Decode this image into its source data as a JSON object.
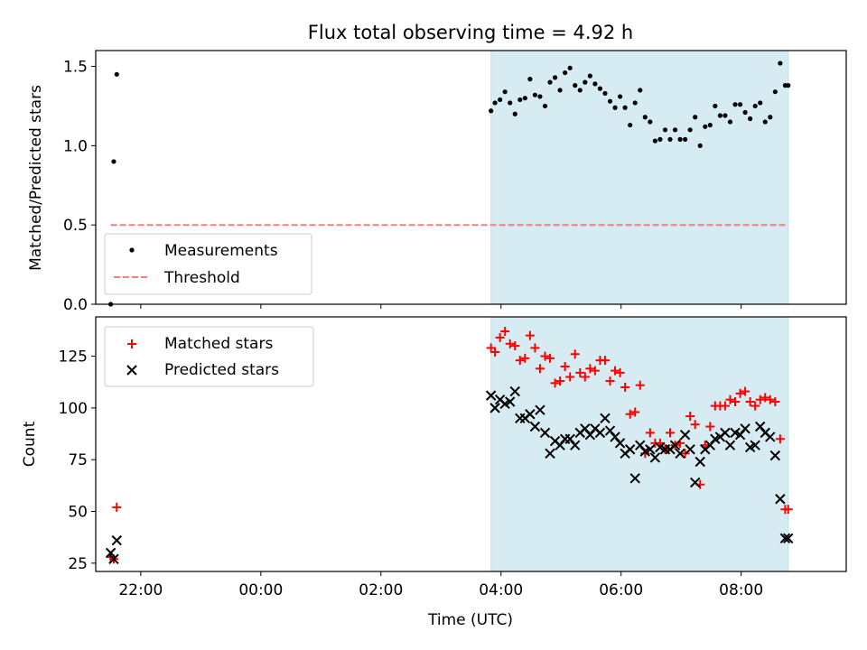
{
  "chart_data": [
    {
      "type": "scatter",
      "title": "Flux total observing time = 4.92 h",
      "xlabel": "",
      "ylabel": "Matched/Predicted stars",
      "xlim": [
        "21:15",
        "09:45"
      ],
      "ylim": [
        0,
        1.6
      ],
      "yticks": [
        0.0,
        0.5,
        1.0,
        1.5
      ],
      "ytick_labels": [
        "0.0",
        "0.5",
        "1.0",
        "1.5"
      ],
      "shaded_span": [
        "03:50",
        "08:47"
      ],
      "threshold": {
        "name": "Threshold",
        "y": 0.5,
        "x": [
          "21:30",
          "08:47"
        ],
        "color": "#f08080"
      },
      "legend": {
        "position": "lower-left",
        "entries": [
          "Measurements",
          "Threshold"
        ]
      },
      "series": [
        {
          "name": "Measurements",
          "color": "#000000",
          "x": [
            "21:30",
            "21:33",
            "21:36",
            "03:50",
            "03:54",
            "03:59",
            "04:04",
            "04:09",
            "04:14",
            "04:19",
            "04:24",
            "04:29",
            "04:34",
            "04:39",
            "04:44",
            "04:49",
            "04:54",
            "04:59",
            "05:04",
            "05:09",
            "05:14",
            "05:19",
            "05:24",
            "05:29",
            "05:34",
            "05:39",
            "05:44",
            "05:49",
            "05:54",
            "05:59",
            "06:04",
            "06:09",
            "06:14",
            "06:19",
            "06:24",
            "06:29",
            "06:34",
            "06:39",
            "06:44",
            "06:49",
            "06:54",
            "06:59",
            "07:04",
            "07:09",
            "07:14",
            "07:19",
            "07:24",
            "07:29",
            "07:34",
            "07:39",
            "07:44",
            "07:49",
            "07:54",
            "07:59",
            "08:04",
            "08:09",
            "08:14",
            "08:19",
            "08:24",
            "08:29",
            "08:34",
            "08:39",
            "08:44",
            "08:47"
          ],
          "values": [
            0.0,
            0.9,
            1.45,
            1.22,
            1.27,
            1.29,
            1.34,
            1.27,
            1.2,
            1.29,
            1.3,
            1.42,
            1.32,
            1.31,
            1.25,
            1.4,
            1.43,
            1.35,
            1.46,
            1.49,
            1.38,
            1.35,
            1.4,
            1.44,
            1.39,
            1.36,
            1.33,
            1.28,
            1.24,
            1.31,
            1.24,
            1.13,
            1.27,
            1.35,
            1.18,
            1.15,
            1.03,
            1.04,
            1.1,
            1.04,
            1.1,
            1.04,
            1.04,
            1.1,
            1.18,
            1.0,
            1.12,
            1.13,
            1.25,
            1.19,
            1.19,
            1.15,
            1.26,
            1.26,
            1.21,
            1.17,
            1.25,
            1.27,
            1.15,
            1.18,
            1.34,
            1.52,
            1.38,
            1.38
          ]
        }
      ]
    },
    {
      "type": "scatter",
      "title": "",
      "xlabel": "Time (UTC)",
      "ylabel": "Count",
      "xlim": [
        "21:15",
        "09:45"
      ],
      "ylim": [
        21,
        144
      ],
      "yticks": [
        25,
        50,
        75,
        100,
        125
      ],
      "ytick_labels": [
        "25",
        "50",
        "75",
        "100",
        "125"
      ],
      "xticks": [
        "22:00",
        "00:00",
        "02:00",
        "04:00",
        "06:00",
        "08:00"
      ],
      "shaded_span": [
        "03:50",
        "08:47"
      ],
      "legend": {
        "position": "top-left",
        "entries": [
          "Matched stars",
          "Predicted stars"
        ]
      },
      "series": [
        {
          "name": "Matched stars",
          "color": "#ff0000",
          "marker": "plus",
          "x": [
            "21:30",
            "21:33",
            "21:36",
            "03:50",
            "03:54",
            "03:59",
            "04:04",
            "04:09",
            "04:14",
            "04:19",
            "04:24",
            "04:29",
            "04:34",
            "04:39",
            "04:44",
            "04:49",
            "04:54",
            "04:59",
            "05:04",
            "05:09",
            "05:14",
            "05:19",
            "05:24",
            "05:29",
            "05:34",
            "05:39",
            "05:44",
            "05:49",
            "05:54",
            "05:59",
            "06:04",
            "06:09",
            "06:14",
            "06:19",
            "06:24",
            "06:29",
            "06:34",
            "06:39",
            "06:44",
            "06:49",
            "06:54",
            "06:59",
            "07:04",
            "07:09",
            "07:14",
            "07:19",
            "07:24",
            "07:29",
            "07:34",
            "07:39",
            "07:44",
            "07:49",
            "07:54",
            "07:59",
            "08:04",
            "08:09",
            "08:14",
            "08:19",
            "08:24",
            "08:29",
            "08:34",
            "08:39",
            "08:44",
            "08:47"
          ],
          "values": [
            28,
            27,
            52,
            129,
            127,
            134,
            137,
            131,
            130,
            123,
            124,
            135,
            129,
            119,
            125,
            124,
            112,
            113,
            120,
            115,
            126,
            117,
            115,
            119,
            118,
            123,
            123,
            113,
            118,
            117,
            110,
            97,
            98,
            111,
            78,
            88,
            83,
            83,
            80,
            88,
            82,
            83,
            78,
            96,
            92,
            63,
            82,
            91,
            101,
            101,
            101,
            104,
            103,
            107,
            108,
            103,
            101,
            104,
            105,
            104,
            103,
            85,
            51,
            51
          ]
        },
        {
          "name": "Predicted stars",
          "color": "#000000",
          "marker": "x",
          "x": [
            "21:30",
            "21:33",
            "21:36",
            "03:50",
            "03:54",
            "03:59",
            "04:04",
            "04:09",
            "04:14",
            "04:19",
            "04:24",
            "04:29",
            "04:34",
            "04:39",
            "04:44",
            "04:49",
            "04:54",
            "04:59",
            "05:04",
            "05:09",
            "05:14",
            "05:19",
            "05:24",
            "05:29",
            "05:34",
            "05:39",
            "05:44",
            "05:49",
            "05:54",
            "05:59",
            "06:04",
            "06:09",
            "06:14",
            "06:19",
            "06:24",
            "06:29",
            "06:34",
            "06:39",
            "06:44",
            "06:49",
            "06:54",
            "06:59",
            "07:04",
            "07:09",
            "07:14",
            "07:19",
            "07:24",
            "07:29",
            "07:34",
            "07:39",
            "07:44",
            "07:49",
            "07:54",
            "07:59",
            "08:04",
            "08:09",
            "08:14",
            "08:19",
            "08:24",
            "08:29",
            "08:34",
            "08:39",
            "08:44",
            "08:47"
          ],
          "values": [
            30,
            27,
            36,
            106,
            100,
            104,
            102,
            103,
            108,
            95,
            95,
            97,
            91,
            99,
            88,
            78,
            84,
            82,
            85,
            85,
            82,
            88,
            90,
            87,
            90,
            88,
            95,
            89,
            86,
            83,
            78,
            80,
            66,
            82,
            79,
            80,
            76,
            81,
            80,
            80,
            82,
            78,
            87,
            80,
            64,
            74,
            80,
            82,
            85,
            86,
            88,
            82,
            88,
            87,
            90,
            81,
            82,
            91,
            88,
            86,
            77,
            56,
            37,
            37
          ]
        }
      ]
    }
  ]
}
